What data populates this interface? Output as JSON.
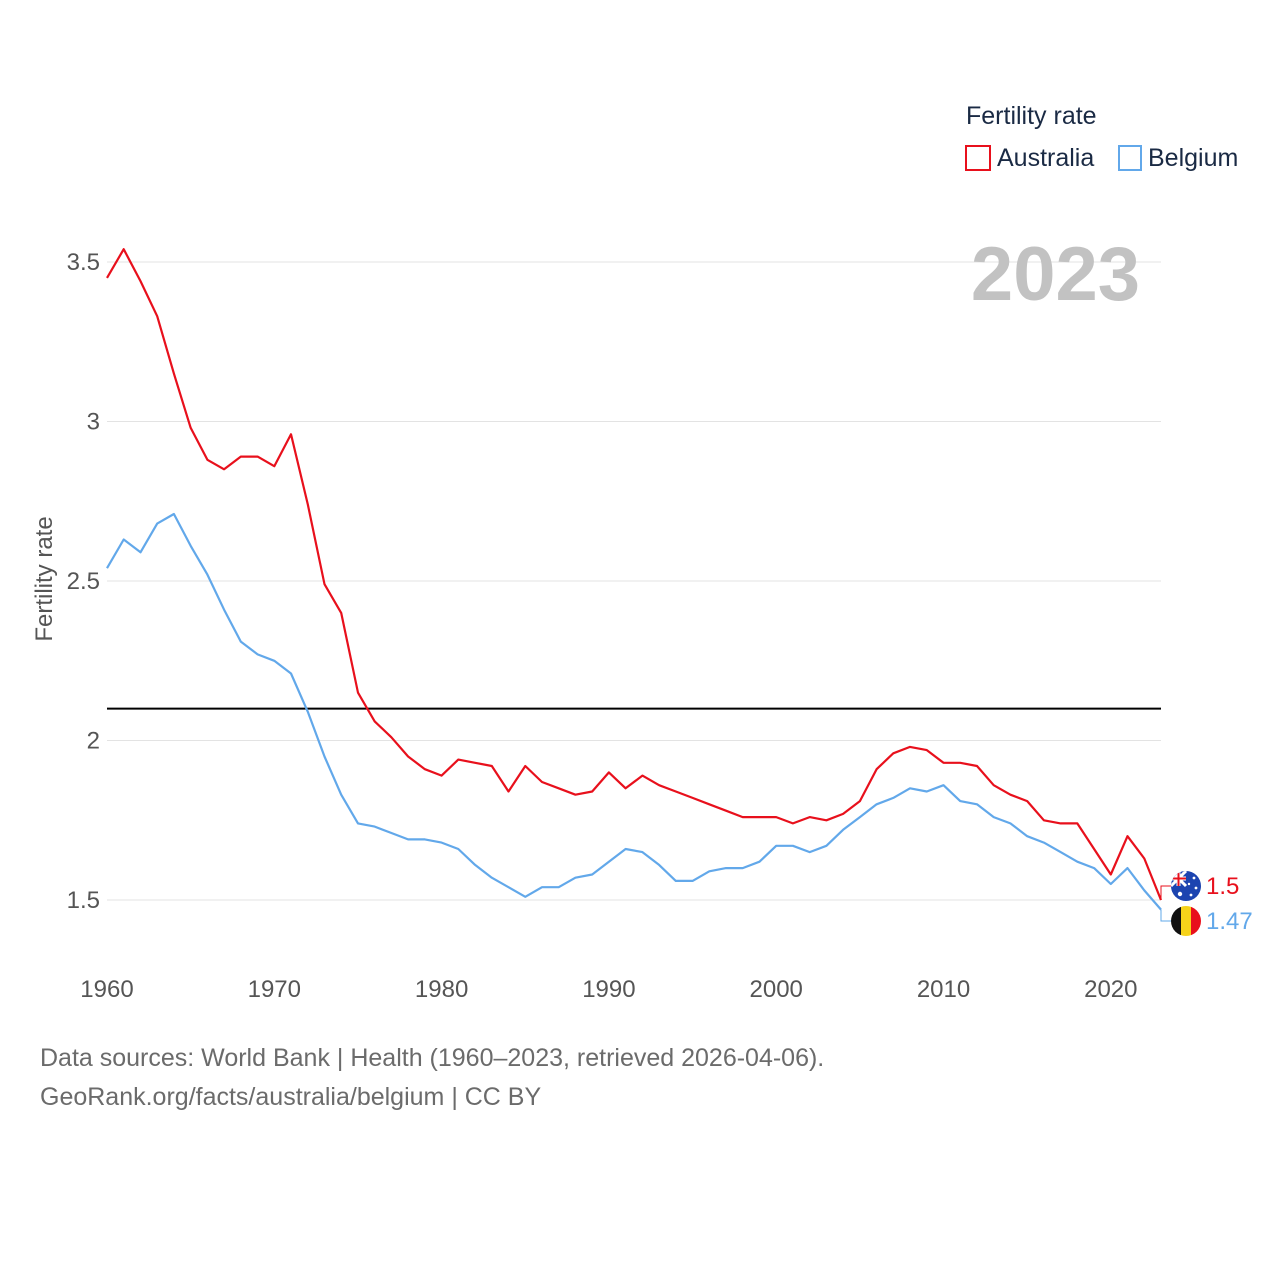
{
  "chart_data": {
    "type": "line",
    "legend_title": "Fertility rate",
    "ylabel": "Fertility rate",
    "xlabel": "",
    "year_label": "2023",
    "xlim": [
      1960,
      2023
    ],
    "ylim": [
      1.4,
      3.6
    ],
    "x_ticks": [
      1960,
      1970,
      1980,
      1990,
      2000,
      2010,
      2020
    ],
    "y_ticks": [
      1.5,
      2,
      2.5,
      3,
      3.5
    ],
    "y_tick_labels": [
      "1.5",
      "2",
      "2.5",
      "3",
      "3.5"
    ],
    "reference_line": {
      "value": 2.1,
      "color": "#000000"
    },
    "legend_position": "top-right",
    "x": [
      1960,
      1961,
      1962,
      1963,
      1964,
      1965,
      1966,
      1967,
      1968,
      1969,
      1970,
      1971,
      1972,
      1973,
      1974,
      1975,
      1976,
      1977,
      1978,
      1979,
      1980,
      1981,
      1982,
      1983,
      1984,
      1985,
      1986,
      1987,
      1988,
      1989,
      1990,
      1991,
      1992,
      1993,
      1994,
      1995,
      1996,
      1997,
      1998,
      1999,
      2000,
      2001,
      2002,
      2003,
      2004,
      2005,
      2006,
      2007,
      2008,
      2009,
      2010,
      2011,
      2012,
      2013,
      2014,
      2015,
      2016,
      2017,
      2018,
      2019,
      2020,
      2021,
      2022,
      2023
    ],
    "series": [
      {
        "name": "Australia",
        "color": "#e8101c",
        "end_label": "1.5",
        "flag": "australia-flag",
        "values": [
          3.45,
          3.54,
          3.44,
          3.33,
          3.15,
          2.98,
          2.88,
          2.85,
          2.89,
          2.89,
          2.86,
          2.96,
          2.74,
          2.49,
          2.4,
          2.15,
          2.06,
          2.01,
          1.95,
          1.91,
          1.89,
          1.94,
          1.93,
          1.92,
          1.84,
          1.92,
          1.87,
          1.85,
          1.83,
          1.84,
          1.9,
          1.85,
          1.89,
          1.86,
          1.84,
          1.82,
          1.8,
          1.78,
          1.76,
          1.76,
          1.76,
          1.74,
          1.76,
          1.75,
          1.77,
          1.81,
          1.91,
          1.96,
          1.98,
          1.97,
          1.93,
          1.93,
          1.92,
          1.86,
          1.83,
          1.81,
          1.75,
          1.74,
          1.74,
          1.66,
          1.58,
          1.7,
          1.63,
          1.5
        ]
      },
      {
        "name": "Belgium",
        "color": "#62a8ea",
        "end_label": "1.47",
        "flag": "belgium-flag",
        "values": [
          2.54,
          2.63,
          2.59,
          2.68,
          2.71,
          2.61,
          2.52,
          2.41,
          2.31,
          2.27,
          2.25,
          2.21,
          2.09,
          1.95,
          1.83,
          1.74,
          1.73,
          1.71,
          1.69,
          1.69,
          1.68,
          1.66,
          1.61,
          1.57,
          1.54,
          1.51,
          1.54,
          1.54,
          1.57,
          1.58,
          1.62,
          1.66,
          1.65,
          1.61,
          1.56,
          1.56,
          1.59,
          1.6,
          1.6,
          1.62,
          1.67,
          1.67,
          1.65,
          1.67,
          1.72,
          1.76,
          1.8,
          1.82,
          1.85,
          1.84,
          1.86,
          1.81,
          1.8,
          1.76,
          1.74,
          1.7,
          1.68,
          1.65,
          1.62,
          1.6,
          1.55,
          1.6,
          1.53,
          1.47
        ]
      }
    ]
  },
  "footer": {
    "source": "Data sources: World Bank | Health (1960–2023, retrieved 2026-04-06).",
    "link": "GeoRank.org/facts/australia/belgium | CC BY"
  }
}
